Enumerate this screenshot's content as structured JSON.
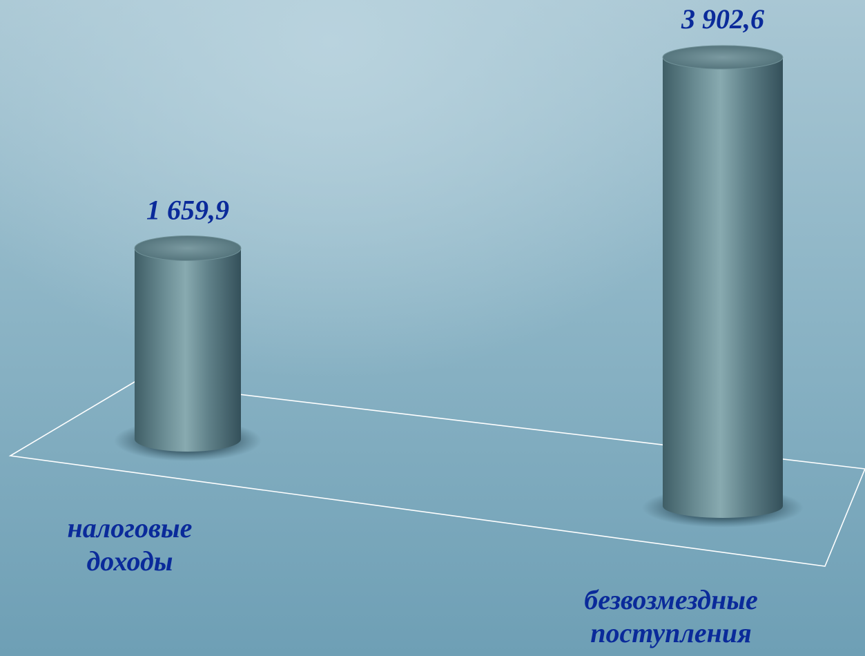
{
  "chart_data": {
    "type": "bar",
    "style": "3d-cylinder",
    "categories": [
      "налоговые доходы",
      "безвозмездные поступления"
    ],
    "category_lines": [
      [
        "налоговые",
        "доходы"
      ],
      [
        "безвозмездные",
        "поступления"
      ]
    ],
    "values": [
      1659.9,
      3902.6
    ],
    "value_labels": [
      "1 659,9",
      "3 902,6"
    ],
    "title": "",
    "xlabel": "",
    "ylabel": "",
    "ylim": [
      0,
      3902.6
    ],
    "grid": false,
    "legend": "none"
  },
  "colors": {
    "label_text": "#0a2a9a",
    "cylinder": "#5f8088",
    "cylinder_dark": "#3d5a62",
    "cylinder_light": "#8fb0b6",
    "floor_line": "#ffffff"
  }
}
